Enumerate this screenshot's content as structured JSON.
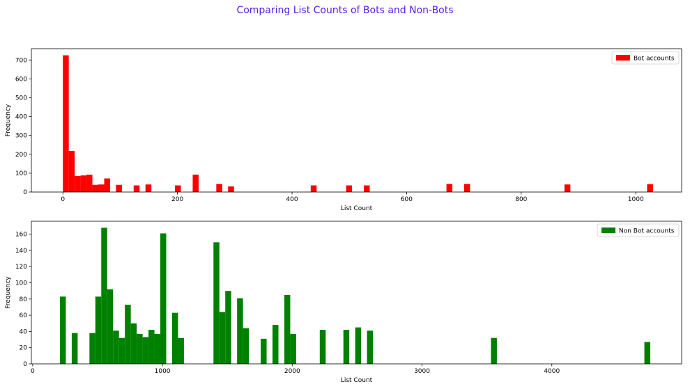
{
  "title": "Comparing List Counts of Bots and Non-Bots",
  "title_color": "#5a1ee6",
  "chart_data": [
    {
      "type": "bar",
      "series_name": "Bot accounts",
      "color": "#ff0000",
      "xlabel": "List Count",
      "ylabel": "Frequency",
      "xlim": [
        -55,
        1080
      ],
      "ylim": [
        0,
        760
      ],
      "xticks": [
        0,
        200,
        400,
        600,
        800,
        1000
      ],
      "yticks": [
        0,
        100,
        200,
        300,
        400,
        500,
        600,
        700
      ],
      "bin_width": 10.3,
      "bins": [
        {
          "x": 0,
          "value": 725
        },
        {
          "x": 10.3,
          "value": 218
        },
        {
          "x": 20.6,
          "value": 85
        },
        {
          "x": 30.9,
          "value": 88
        },
        {
          "x": 41.2,
          "value": 92
        },
        {
          "x": 51.5,
          "value": 38
        },
        {
          "x": 61.8,
          "value": 40
        },
        {
          "x": 72.1,
          "value": 72
        },
        {
          "x": 92.7,
          "value": 38
        },
        {
          "x": 123.6,
          "value": 35
        },
        {
          "x": 144.2,
          "value": 40
        },
        {
          "x": 195.7,
          "value": 35
        },
        {
          "x": 226.6,
          "value": 92
        },
        {
          "x": 267.8,
          "value": 43
        },
        {
          "x": 288.4,
          "value": 30
        },
        {
          "x": 432.6,
          "value": 35
        },
        {
          "x": 494.4,
          "value": 35
        },
        {
          "x": 525.3,
          "value": 35
        },
        {
          "x": 669.5,
          "value": 43
        },
        {
          "x": 700.4,
          "value": 43
        },
        {
          "x": 875.5,
          "value": 40
        },
        {
          "x": 1019.7,
          "value": 42
        }
      ],
      "legend": "Bot accounts",
      "legend_position": "upper right",
      "grid": false
    },
    {
      "type": "bar",
      "series_name": "Non Bot accounts",
      "color": "#008000",
      "xlabel": "List Count",
      "ylabel": "Frequency",
      "xlim": [
        -10,
        5000
      ],
      "ylim": [
        0,
        176
      ],
      "xticks": [
        0,
        1000,
        2000,
        3000,
        4000
      ],
      "yticks": [
        0,
        20,
        40,
        60,
        80,
        100,
        120,
        140,
        160
      ],
      "bin_width": 45.5,
      "bins": [
        {
          "x": 210,
          "value": 83
        },
        {
          "x": 301,
          "value": 38
        },
        {
          "x": 437.5,
          "value": 38
        },
        {
          "x": 483,
          "value": 83
        },
        {
          "x": 528.5,
          "value": 168
        },
        {
          "x": 574,
          "value": 92
        },
        {
          "x": 619.5,
          "value": 41
        },
        {
          "x": 665,
          "value": 32
        },
        {
          "x": 710.5,
          "value": 73
        },
        {
          "x": 756,
          "value": 50
        },
        {
          "x": 801.5,
          "value": 37
        },
        {
          "x": 847,
          "value": 33
        },
        {
          "x": 892.5,
          "value": 42
        },
        {
          "x": 938,
          "value": 37
        },
        {
          "x": 983.5,
          "value": 161
        },
        {
          "x": 1074.5,
          "value": 63
        },
        {
          "x": 1120,
          "value": 32
        },
        {
          "x": 1393,
          "value": 150
        },
        {
          "x": 1438.5,
          "value": 64
        },
        {
          "x": 1484,
          "value": 90
        },
        {
          "x": 1575,
          "value": 81
        },
        {
          "x": 1620.5,
          "value": 44
        },
        {
          "x": 1757,
          "value": 31
        },
        {
          "x": 1848,
          "value": 48
        },
        {
          "x": 1939,
          "value": 85
        },
        {
          "x": 1984.5,
          "value": 37
        },
        {
          "x": 2212,
          "value": 42
        },
        {
          "x": 2394,
          "value": 42
        },
        {
          "x": 2485,
          "value": 45
        },
        {
          "x": 2576,
          "value": 41
        },
        {
          "x": 3531,
          "value": 32
        },
        {
          "x": 4713,
          "value": 27
        }
      ],
      "legend": "Non Bot accounts",
      "legend_position": "upper right",
      "grid": false
    }
  ]
}
